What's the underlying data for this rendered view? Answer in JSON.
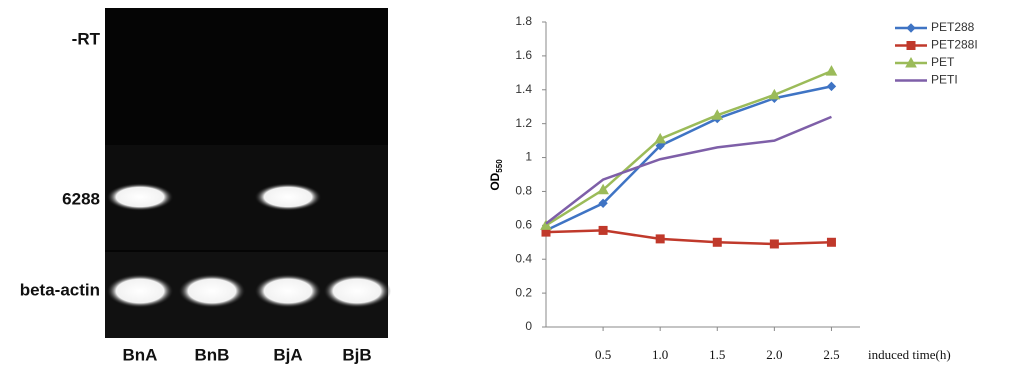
{
  "gel": {
    "row_labels": [
      "-RT",
      "6288",
      "beta-actin"
    ],
    "lane_labels": [
      "BnA",
      "BnB",
      "BjA",
      "BjB"
    ]
  },
  "chart_data": {
    "type": "line",
    "y_label": "OD",
    "y_label_subscript": "550",
    "x_label": "induced time(h)",
    "x": [
      0,
      0.5,
      1,
      1.5,
      2,
      2.5
    ],
    "xlim": [
      0,
      2.75
    ],
    "xticks": [
      0.5,
      {
        "value": 1,
        "label": "1.0"
      },
      1.5,
      {
        "value": 2,
        "label": "2.0"
      },
      2.5
    ],
    "ylim": [
      0,
      1.8
    ],
    "yticks": [
      0,
      0.2,
      0.4,
      0.6,
      0.8,
      1,
      1.2,
      1.4,
      1.6,
      1.8
    ],
    "grid": false,
    "legend": "top-right",
    "series": [
      {
        "name": "PET288",
        "color": "#3f74c4",
        "marker": "diamond",
        "values": [
          0.57,
          0.73,
          1.07,
          1.23,
          1.35,
          1.42
        ]
      },
      {
        "name": "PET288I",
        "color": "#c0392b",
        "marker": "square",
        "values": [
          0.56,
          0.57,
          0.52,
          0.5,
          0.49,
          0.5
        ]
      },
      {
        "name": "PET",
        "color": "#9bbb59",
        "marker": "triangle",
        "values": [
          0.6,
          0.81,
          1.11,
          1.25,
          1.37,
          1.51
        ]
      },
      {
        "name": "PETI",
        "color": "#7e5fa8",
        "marker": "none",
        "values": [
          0.61,
          0.87,
          0.99,
          1.06,
          1.1,
          1.24
        ]
      }
    ]
  }
}
